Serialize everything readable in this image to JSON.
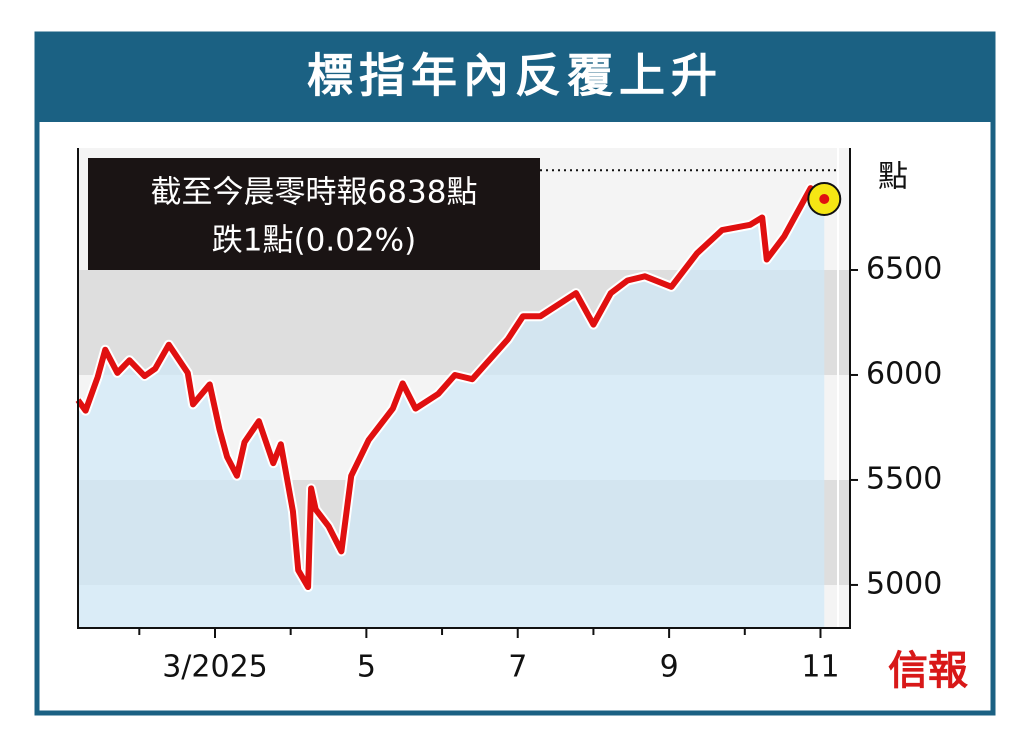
{
  "chart_data": {
    "type": "line",
    "title": "標指年內反覆上升",
    "annotation": [
      "截至今晨零時報6838點",
      "跌1點(0.02%)"
    ],
    "y_axis_label": "點",
    "source": "信報",
    "x": [
      1.19,
      1.29,
      1.45,
      1.55,
      1.71,
      1.87,
      2.07,
      2.21,
      2.39,
      2.64,
      2.71,
      2.93,
      3.06,
      3.16,
      3.29,
      3.39,
      3.58,
      3.77,
      3.87,
      4.03,
      4.1,
      4.23,
      4.27,
      4.33,
      4.5,
      4.67,
      4.8,
      5.03,
      5.35,
      5.48,
      5.65,
      5.95,
      6.17,
      6.4,
      6.87,
      7.07,
      7.3,
      7.77,
      8.0,
      8.23,
      8.45,
      8.68,
      9.03,
      9.37,
      9.7,
      10.07,
      10.23,
      10.29,
      10.52,
      10.87,
      10.94,
      11.0,
      11.05
    ],
    "series": [
      {
        "name": "標指",
        "color": "#e01010",
        "values": [
          5880,
          5830,
          5990,
          6120,
          6010,
          6070,
          5995,
          6030,
          6144,
          6010,
          5860,
          5955,
          5740,
          5610,
          5520,
          5680,
          5780,
          5580,
          5670,
          5350,
          5070,
          4990,
          5460,
          5360,
          5280,
          5160,
          5520,
          5690,
          5840,
          5960,
          5840,
          5910,
          6000,
          5980,
          6170,
          6280,
          6280,
          6390,
          6240,
          6390,
          6450,
          6470,
          6420,
          6580,
          6690,
          6715,
          6750,
          6550,
          6660,
          6890,
          6822,
          6870,
          6838
        ]
      }
    ],
    "xlim": [
      1.19,
      11.39
    ],
    "xticks": [
      {
        "value": 3,
        "label": "3/2025"
      },
      5,
      7,
      9,
      11
    ],
    "xminorticks": [
      2,
      4,
      6,
      8,
      10
    ],
    "ylim": [
      4795,
      7081
    ],
    "yticks": [
      5000,
      5500,
      6000,
      6500
    ],
    "reference_line": 6975,
    "highlight_color": "#f5e614"
  }
}
